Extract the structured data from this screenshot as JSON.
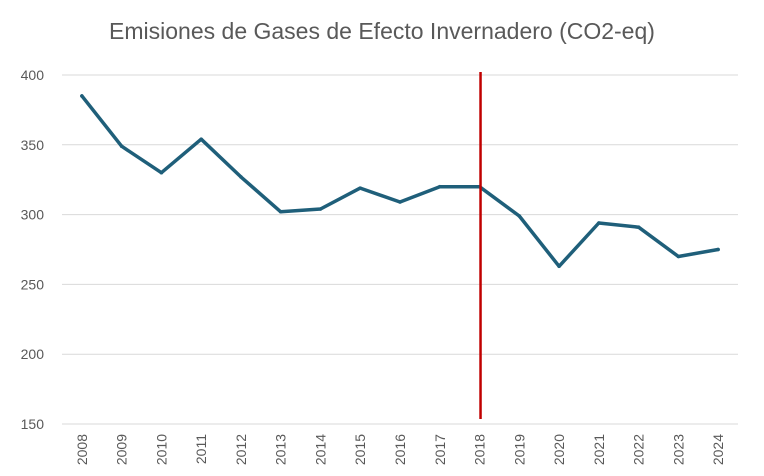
{
  "chart_data": {
    "type": "line",
    "title": "Emisiones de Gases de Efecto Invernadero (CO2-eq)",
    "xlabel": "",
    "ylabel": "",
    "ylim": [
      150,
      400
    ],
    "yticks": [
      150,
      200,
      250,
      300,
      350,
      400
    ],
    "grid": true,
    "legend": "none",
    "categories": [
      "2008",
      "2009",
      "2010",
      "2011",
      "2012",
      "2013",
      "2014",
      "2015",
      "2016",
      "2017",
      "2018",
      "2019",
      "2020",
      "2021",
      "2022",
      "2023",
      "2024"
    ],
    "series": [
      {
        "values": [
          385,
          349,
          330,
          354,
          327,
          302,
          304,
          319,
          309,
          320,
          320,
          299,
          263,
          294,
          291,
          270,
          275
        ],
        "color": "#1f5f7a"
      }
    ],
    "marker_line": {
      "category": "2018",
      "color": "#c00000"
    }
  }
}
